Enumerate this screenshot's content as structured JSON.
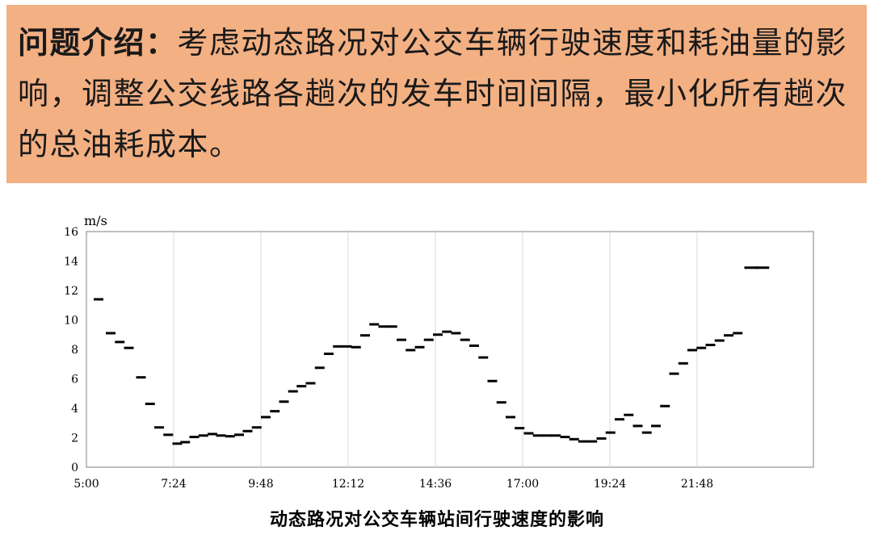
{
  "intro": {
    "label": "问题介绍：",
    "text": "考虑动态路况对公交车辆行驶速度和耗油量的影响，调整公交线路各趟次的发车时间间隔，最小化所有趟次的总油耗成本。"
  },
  "caption": "动态路况对公交车辆站间行驶速度的影响",
  "colors": {
    "banner": "#f3b083",
    "marks": "#000000",
    "grid": "#d9d9d9"
  },
  "chart_data": {
    "type": "scatter",
    "marker": "horizontal-dash",
    "title": "动态路况对公交车辆站间行驶速度的影响",
    "ylabel": "m/s",
    "xlabel": "",
    "xlim": [
      300,
      1500
    ],
    "ylim": [
      0,
      16
    ],
    "grid": "vertical",
    "x_ticks": [
      {
        "v": 300,
        "label": "5:00"
      },
      {
        "v": 444,
        "label": "7:24"
      },
      {
        "v": 588,
        "label": "9:48"
      },
      {
        "v": 732,
        "label": "12:12"
      },
      {
        "v": 876,
        "label": "14:36"
      },
      {
        "v": 1020,
        "label": "17:00"
      },
      {
        "v": 1164,
        "label": "19:24"
      },
      {
        "v": 1308,
        "label": "21:48"
      }
    ],
    "y_ticks": [
      0,
      2,
      4,
      6,
      8,
      10,
      12,
      14,
      16
    ],
    "points": [
      [
        320,
        11.4
      ],
      [
        340,
        9.1
      ],
      [
        355,
        8.5
      ],
      [
        370,
        8.1
      ],
      [
        390,
        6.1
      ],
      [
        405,
        4.3
      ],
      [
        420,
        2.7
      ],
      [
        435,
        2.2
      ],
      [
        450,
        1.6
      ],
      [
        463,
        1.7
      ],
      [
        478,
        2.05
      ],
      [
        493,
        2.15
      ],
      [
        508,
        2.25
      ],
      [
        522,
        2.15
      ],
      [
        537,
        2.1
      ],
      [
        552,
        2.2
      ],
      [
        566,
        2.45
      ],
      [
        581,
        2.7
      ],
      [
        596,
        3.4
      ],
      [
        611,
        3.8
      ],
      [
        626,
        4.45
      ],
      [
        641,
        5.15
      ],
      [
        655,
        5.5
      ],
      [
        670,
        5.7
      ],
      [
        685,
        6.75
      ],
      [
        700,
        7.7
      ],
      [
        715,
        8.2
      ],
      [
        730,
        8.2
      ],
      [
        745,
        8.15
      ],
      [
        760,
        8.95
      ],
      [
        775,
        9.7
      ],
      [
        790,
        9.55
      ],
      [
        805,
        9.55
      ],
      [
        820,
        8.65
      ],
      [
        835,
        7.95
      ],
      [
        850,
        8.15
      ],
      [
        865,
        8.65
      ],
      [
        880,
        9.0
      ],
      [
        895,
        9.2
      ],
      [
        910,
        9.1
      ],
      [
        925,
        8.65
      ],
      [
        940,
        8.25
      ],
      [
        955,
        7.45
      ],
      [
        970,
        5.85
      ],
      [
        985,
        4.4
      ],
      [
        1000,
        3.4
      ],
      [
        1015,
        2.65
      ],
      [
        1030,
        2.3
      ],
      [
        1045,
        2.15
      ],
      [
        1060,
        2.15
      ],
      [
        1075,
        2.15
      ],
      [
        1090,
        2.05
      ],
      [
        1105,
        1.9
      ],
      [
        1120,
        1.75
      ],
      [
        1135,
        1.75
      ],
      [
        1150,
        1.95
      ],
      [
        1165,
        2.35
      ],
      [
        1180,
        3.25
      ],
      [
        1195,
        3.55
      ],
      [
        1210,
        2.8
      ],
      [
        1225,
        2.35
      ],
      [
        1240,
        2.8
      ],
      [
        1255,
        4.15
      ],
      [
        1270,
        6.35
      ],
      [
        1285,
        7.05
      ],
      [
        1300,
        7.95
      ],
      [
        1315,
        8.1
      ],
      [
        1330,
        8.3
      ],
      [
        1345,
        8.6
      ],
      [
        1360,
        8.95
      ],
      [
        1375,
        9.1
      ],
      [
        1398,
        13.55
      ],
      [
        1415,
        13.55
      ]
    ]
  }
}
